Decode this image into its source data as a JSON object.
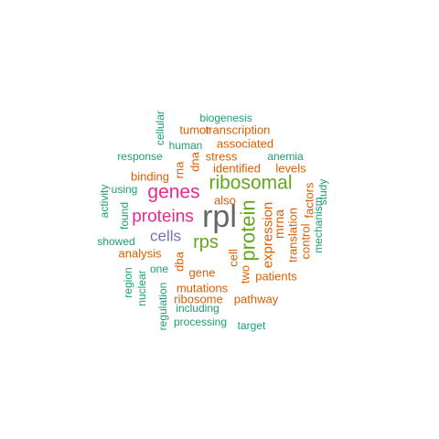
{
  "palette": {
    "teal": "#1b9e77",
    "orange": "#d95f02",
    "purple": "#7570b3",
    "magenta": "#e7298a",
    "green": "#66a61e",
    "gray": "#666666"
  },
  "words": [
    {
      "text": "rpl",
      "color": "gray"
    },
    {
      "text": "protein",
      "color": "green"
    },
    {
      "text": "ribosomal",
      "color": "green"
    },
    {
      "text": "genes",
      "color": "magenta"
    },
    {
      "text": "proteins",
      "color": "magenta"
    },
    {
      "text": "rps",
      "color": "green"
    },
    {
      "text": "cells",
      "color": "purple"
    },
    {
      "text": "expression",
      "color": "orange"
    },
    {
      "text": "mrna",
      "color": "orange"
    },
    {
      "text": "identified",
      "color": "orange"
    },
    {
      "text": "associated",
      "color": "orange"
    },
    {
      "text": "transcription",
      "color": "orange"
    },
    {
      "text": "tumor",
      "color": "orange"
    },
    {
      "text": "stress",
      "color": "orange"
    },
    {
      "text": "binding",
      "color": "orange"
    },
    {
      "text": "levels",
      "color": "orange"
    },
    {
      "text": "also",
      "color": "orange"
    },
    {
      "text": "dna",
      "color": "orange"
    },
    {
      "text": "rna",
      "color": "orange"
    },
    {
      "text": "analysis",
      "color": "orange"
    },
    {
      "text": "dba",
      "color": "orange"
    },
    {
      "text": "gene",
      "color": "orange"
    },
    {
      "text": "two",
      "color": "orange"
    },
    {
      "text": "cell",
      "color": "orange"
    },
    {
      "text": "translation",
      "color": "orange"
    },
    {
      "text": "control",
      "color": "orange"
    },
    {
      "text": "factors",
      "color": "orange"
    },
    {
      "text": "patients",
      "color": "orange"
    },
    {
      "text": "mutations",
      "color": "orange"
    },
    {
      "text": "ribosome",
      "color": "orange"
    },
    {
      "text": "pathway",
      "color": "orange"
    },
    {
      "text": "biogenesis",
      "color": "teal"
    },
    {
      "text": "cellular",
      "color": "teal"
    },
    {
      "text": "human",
      "color": "teal"
    },
    {
      "text": "response",
      "color": "teal"
    },
    {
      "text": "anemia",
      "color": "teal"
    },
    {
      "text": "using",
      "color": "teal"
    },
    {
      "text": "activity",
      "color": "teal"
    },
    {
      "text": "found",
      "color": "teal"
    },
    {
      "text": "showed",
      "color": "teal"
    },
    {
      "text": "region",
      "color": "teal"
    },
    {
      "text": "nuclear",
      "color": "teal"
    },
    {
      "text": "one",
      "color": "teal"
    },
    {
      "text": "regulation",
      "color": "teal"
    },
    {
      "text": "including",
      "color": "teal"
    },
    {
      "text": "processing",
      "color": "teal"
    },
    {
      "text": "target",
      "color": "teal"
    },
    {
      "text": "study",
      "color": "teal"
    },
    {
      "text": "mechanism",
      "color": "teal"
    }
  ]
}
